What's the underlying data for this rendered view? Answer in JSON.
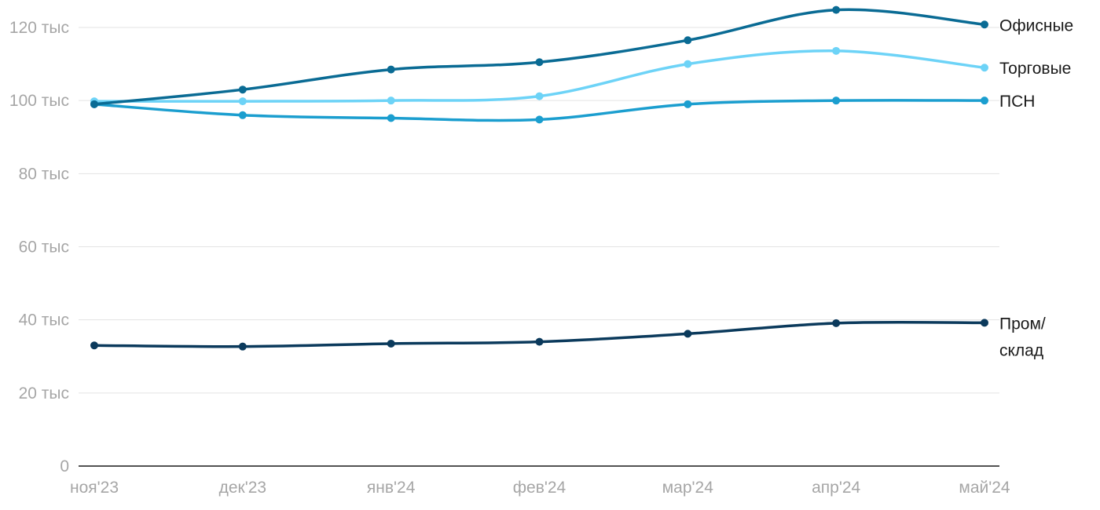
{
  "chart_data": {
    "type": "line",
    "title": "",
    "xlabel": "",
    "ylabel": "",
    "categories": [
      "ноя'23",
      "дек'23",
      "янв'24",
      "фев'24",
      "мар'24",
      "апр'24",
      "май'24"
    ],
    "ylim": [
      0,
      120000
    ],
    "yticks": [
      0,
      20000,
      40000,
      60000,
      80000,
      100000,
      120000
    ],
    "ytick_labels": [
      "0",
      "20 тыс",
      "40 тыс",
      "60 тыс",
      "80 тыс",
      "100 тыс",
      "120 тыс"
    ],
    "grid": true,
    "legend": "direct labels at right end of lines",
    "series": [
      {
        "name": "Офисные",
        "label_lines": [
          "Офисные"
        ],
        "color": "#0a6b94",
        "values": [
          99000,
          103000,
          108500,
          110500,
          116500,
          124800,
          120800
        ]
      },
      {
        "name": "Торговые",
        "label_lines": [
          "Торговые"
        ],
        "color": "#6dd3f7",
        "values": [
          99800,
          99800,
          100000,
          101200,
          110000,
          113600,
          109000
        ]
      },
      {
        "name": "ПСН",
        "label_lines": [
          "ПСН"
        ],
        "color": "#1b9ecf",
        "values": [
          99000,
          96000,
          95200,
          94800,
          99000,
          100000,
          100000
        ]
      },
      {
        "name": "Пром/склад",
        "label_lines": [
          "Пром/",
          "склад"
        ],
        "color": "#0b3a5c",
        "values": [
          33000,
          32700,
          33500,
          34000,
          36200,
          39100,
          39200
        ]
      }
    ]
  }
}
